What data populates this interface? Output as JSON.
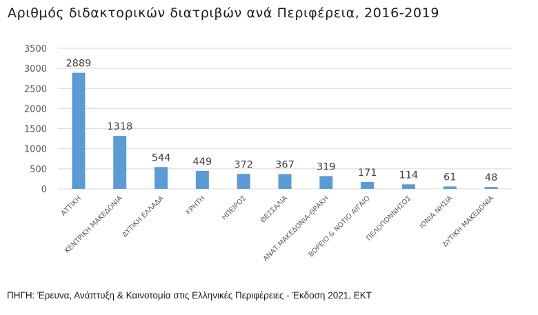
{
  "title": "Αριθμός διδακτορικών διατριβών ανά Περιφέρεια, 2016-2019",
  "source": "ΠΗΓΗ: Έρευνα, Ανάπτυξη & Καινοτομία στις Ελληνικές Περιφέρειες - Έκδοση 2021, ΕΚΤ",
  "colors": {
    "bar": "#5B9BD5",
    "grid": "#D9D9D9",
    "tick": "#595959",
    "value": "#404040"
  },
  "chart_data": {
    "type": "bar",
    "title": "Αριθμός διδακτορικών διατριβών ανά Περιφέρεια, 2016-2019",
    "xlabel": "",
    "ylabel": "",
    "ylim": [
      0,
      3500
    ],
    "yticks": [
      0,
      500,
      1000,
      1500,
      2000,
      2500,
      3000,
      3500
    ],
    "grid": true,
    "legend": null,
    "data_labels": true,
    "categories": [
      "ΑΤΤΙΚΗ",
      "ΚΕΝΤΡΙΚΗ ΜΑΚΕΔΟΝΙΑ",
      "ΔΥΤΙΚΗ ΕΛΛΑΔΑ",
      "ΚΡΗΤΗ",
      "ΗΠΕΙΡΟΣ",
      "ΘΕΣΣΑΛΙΑ",
      "ΑΝΑΤ.ΜΑΚΕΔΟΝΙΑ-ΘΡΑΚΗ",
      "ΒΟΡΕΙΟ & ΝΟΤΙΟ ΑΙΓΑΙΟ",
      "ΠΕΛΟΠΟΝΝΗΣΟΣ",
      "ΙΟΝΙΑ ΝΗΣΙΑ",
      "ΔΥΤΙΚΗ ΜΑΚΕΔΟΝΙΑ"
    ],
    "values": [
      2889,
      1318,
      544,
      449,
      372,
      367,
      319,
      171,
      114,
      61,
      48
    ]
  }
}
